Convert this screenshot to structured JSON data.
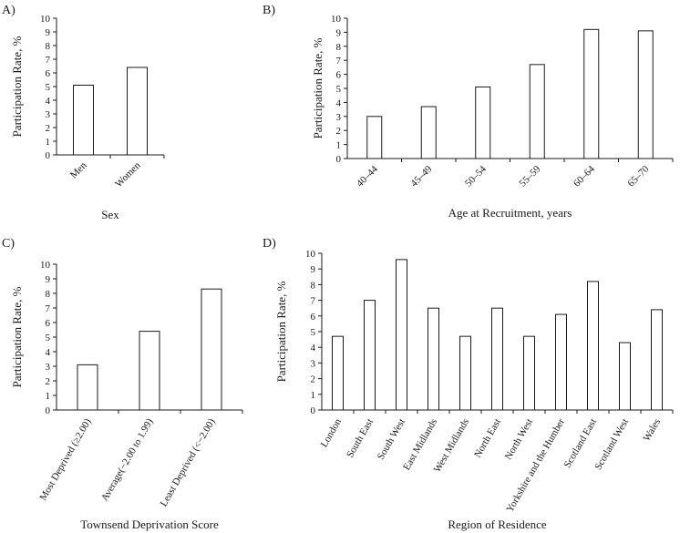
{
  "chart_data": [
    {
      "type": "bar",
      "panel": "A)",
      "title": "",
      "xlabel": "Sex",
      "ylabel": "Participation Rate, %",
      "ylim": [
        0,
        10
      ],
      "categories": [
        "Men",
        "Women"
      ],
      "values": [
        5.1,
        6.4
      ]
    },
    {
      "type": "bar",
      "panel": "B)",
      "title": "",
      "xlabel": "Age at Recruitment, years",
      "ylabel": "Participation Rate, %",
      "ylim": [
        0,
        10
      ],
      "categories": [
        "40–44",
        "45–49",
        "50–54",
        "55–59",
        "60–64",
        "65–70"
      ],
      "values": [
        3.0,
        3.7,
        5.1,
        6.7,
        9.2,
        9.1
      ]
    },
    {
      "type": "bar",
      "panel": "C)",
      "title": "",
      "xlabel": "Townsend Deprivation Score",
      "ylabel": "Participation Rate, %",
      "ylim": [
        0,
        10
      ],
      "categories": [
        "Most Deprived (≥2.00)",
        "Average(−2.00  to 1.99)",
        "Least Deprived (<−2.00)"
      ],
      "values": [
        3.1,
        5.4,
        8.3
      ]
    },
    {
      "type": "bar",
      "panel": "D)",
      "title": "",
      "xlabel": "Region of Residence",
      "ylabel": "Participation Rate, %",
      "ylim": [
        0,
        10
      ],
      "categories": [
        "London",
        "South East",
        "South West",
        "East Midlands",
        "West Midlands",
        "North East",
        "North West",
        "Yorkshire and the Humber",
        "Scotland East",
        "Scotland West",
        "Wales"
      ],
      "values": [
        4.7,
        7.0,
        9.6,
        6.5,
        4.7,
        6.5,
        4.7,
        6.1,
        8.2,
        4.3,
        6.4
      ]
    }
  ]
}
